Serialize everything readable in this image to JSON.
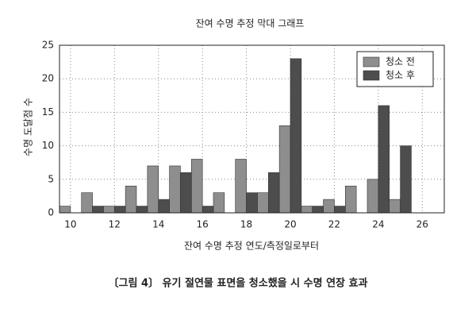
{
  "chart_data": {
    "type": "bar",
    "title": "잔여 수명 추정 막대 그래프",
    "x_label": "잔여 수명 추정 연도/측정일로부터",
    "y_label": "수명 도달점 수",
    "caption": "〔그림 4〕 유기 절연물 표면을 청소했을 시 수명 연장 효과",
    "x": [
      10,
      11,
      12,
      13,
      14,
      15,
      16,
      17,
      18,
      19,
      20,
      21,
      22,
      23,
      24,
      25
    ],
    "series": [
      {
        "name": "청소 전",
        "color": "#8e8e8e",
        "values": [
          1,
          3,
          1,
          4,
          7,
          7,
          8,
          3,
          8,
          3,
          13,
          1,
          2,
          4,
          5,
          2
        ]
      },
      {
        "name": "청소 후",
        "color": "#4d4d4d",
        "values": [
          0,
          1,
          1,
          1,
          2,
          6,
          1,
          0,
          3,
          6,
          23,
          1,
          1,
          0,
          16,
          10
        ]
      }
    ],
    "xlim": [
      9.5,
      27
    ],
    "xticks": [
      10,
      12,
      14,
      16,
      18,
      20,
      22,
      24,
      26
    ],
    "ylim": [
      0,
      25
    ],
    "yticks": [
      0,
      5,
      10,
      15,
      20,
      25
    ],
    "grid": true,
    "legend": "upper right"
  }
}
